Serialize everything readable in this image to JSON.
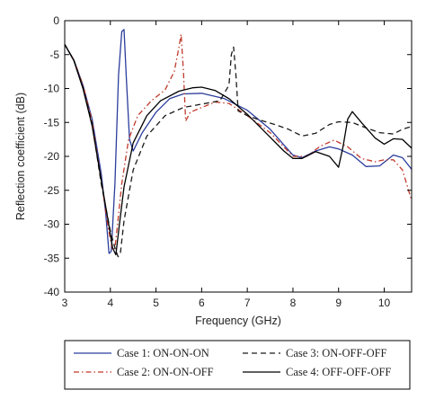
{
  "chart_data": {
    "type": "line",
    "title": "",
    "xlabel": "Frequency (GHz)",
    "ylabel": "Reflection coefficient (dB)",
    "xlim": [
      3,
      10.6
    ],
    "ylim": [
      -40,
      0
    ],
    "xticks": [
      "3",
      "4",
      "5",
      "6",
      "7",
      "8",
      "9",
      "10"
    ],
    "yticks": [
      "0",
      "-5",
      "-10",
      "-15",
      "-20",
      "-25",
      "-30",
      "-35",
      "-40"
    ],
    "grid": false,
    "legend_position": "bottom",
    "series": [
      {
        "name": "Case 1: ON-ON-ON",
        "color": "#2b3d9c",
        "dash": "solid",
        "x": [
          3.0,
          3.2,
          3.4,
          3.6,
          3.8,
          3.9,
          3.97,
          4.02,
          4.1,
          4.18,
          4.25,
          4.3,
          4.35,
          4.42,
          4.5,
          4.7,
          5.0,
          5.3,
          5.6,
          6.0,
          6.5,
          7.0,
          7.5,
          7.8,
          8.0,
          8.2,
          8.5,
          8.8,
          9.0,
          9.3,
          9.6,
          9.9,
          10.2,
          10.4,
          10.6
        ],
        "y": [
          -3.5,
          -5.8,
          -9.5,
          -14.5,
          -22.5,
          -28.5,
          -34.3,
          -34.0,
          -24.0,
          -8.0,
          -1.6,
          -1.3,
          -8.5,
          -17.5,
          -19.2,
          -16.5,
          -13.5,
          -11.5,
          -10.8,
          -10.7,
          -11.5,
          -13.2,
          -16.0,
          -18.3,
          -19.8,
          -20.2,
          -19.2,
          -18.6,
          -18.9,
          -19.8,
          -21.5,
          -21.4,
          -19.8,
          -20.2,
          -21.9
        ]
      },
      {
        "name": "Case 2: ON-ON-OFF",
        "color": "#c0392b",
        "dash": "dashdot",
        "x": [
          3.0,
          3.2,
          3.4,
          3.6,
          3.8,
          3.95,
          4.05,
          4.1,
          4.15,
          4.25,
          4.4,
          4.6,
          4.9,
          5.2,
          5.4,
          5.5,
          5.55,
          5.6,
          5.65,
          5.75,
          6.0,
          6.3,
          6.6,
          7.0,
          7.5,
          8.0,
          8.3,
          8.6,
          8.9,
          9.2,
          9.5,
          9.8,
          10.0,
          10.2,
          10.4,
          10.6
        ],
        "y": [
          -3.5,
          -5.8,
          -9.5,
          -14.8,
          -23.5,
          -30.5,
          -33.8,
          -33.5,
          -30.5,
          -24.0,
          -17.5,
          -14.0,
          -11.8,
          -10.2,
          -7.5,
          -4.0,
          -2.0,
          -7.5,
          -14.8,
          -13.5,
          -12.8,
          -12.0,
          -12.2,
          -14.0,
          -16.5,
          -20.0,
          -20.0,
          -18.5,
          -17.6,
          -18.6,
          -20.3,
          -20.8,
          -20.5,
          -20.5,
          -22.0,
          -26.5
        ]
      },
      {
        "name": "Case 3: ON-OFF-OFF",
        "color": "#1a1a1a",
        "dash": "dashed",
        "x": [
          3.0,
          3.2,
          3.4,
          3.6,
          3.8,
          4.0,
          4.1,
          4.17,
          4.22,
          4.3,
          4.5,
          4.8,
          5.2,
          5.6,
          6.0,
          6.4,
          6.6,
          6.65,
          6.7,
          6.75,
          6.8,
          7.0,
          7.3,
          7.6,
          7.9,
          8.2,
          8.5,
          8.8,
          9.0,
          9.3,
          9.6,
          9.9,
          10.2,
          10.4,
          10.6
        ],
        "y": [
          -3.5,
          -5.8,
          -9.8,
          -15.2,
          -24.0,
          -31.0,
          -33.5,
          -34.8,
          -34.2,
          -29.5,
          -22.0,
          -17.0,
          -14.0,
          -12.8,
          -12.3,
          -11.8,
          -9.5,
          -5.0,
          -3.9,
          -8.0,
          -13.3,
          -14.0,
          -14.7,
          -15.3,
          -16.0,
          -17.0,
          -16.6,
          -15.3,
          -14.9,
          -15.0,
          -15.8,
          -16.5,
          -16.7,
          -16.0,
          -15.6
        ]
      },
      {
        "name": "Case 4: OFF-OFF-OFF",
        "color": "#000000",
        "dash": "solid",
        "x": [
          3.0,
          3.2,
          3.4,
          3.6,
          3.8,
          3.95,
          4.05,
          4.12,
          4.2,
          4.3,
          4.5,
          4.8,
          5.1,
          5.5,
          5.8,
          6.0,
          6.3,
          6.6,
          7.0,
          7.4,
          7.8,
          8.0,
          8.2,
          8.5,
          8.8,
          9.0,
          9.1,
          9.2,
          9.3,
          9.5,
          9.8,
          10.0,
          10.2,
          10.4,
          10.6
        ],
        "y": [
          -3.5,
          -5.9,
          -10.0,
          -15.5,
          -23.5,
          -29.5,
          -33.5,
          -34.5,
          -30.0,
          -24.5,
          -18.0,
          -14.0,
          -11.8,
          -10.4,
          -9.9,
          -9.8,
          -10.3,
          -11.5,
          -13.8,
          -16.5,
          -19.2,
          -20.3,
          -20.3,
          -19.3,
          -20.0,
          -21.6,
          -18.5,
          -14.5,
          -13.4,
          -15.0,
          -17.3,
          -18.2,
          -17.4,
          -17.5,
          -18.8
        ]
      }
    ]
  }
}
